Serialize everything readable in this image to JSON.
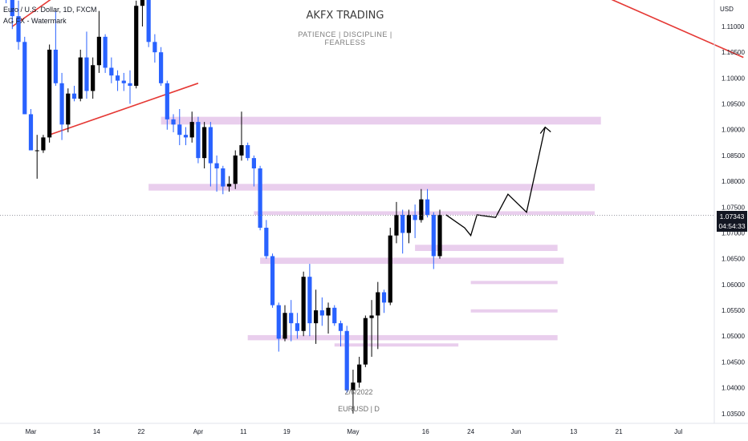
{
  "header": {
    "symbol_line": "Euro / U.S. Dollar, 1D, FXCM",
    "indicator_line": "AG FX - Watermark"
  },
  "watermark": {
    "title": "AKFX TRADING",
    "subtitle": "PATIENCE  |  DISCIPLINE  |  FEARLESS",
    "date": "2/6/2022",
    "instrument": "EURUSD | D"
  },
  "price_axis": {
    "currency": "USD",
    "ticks": [
      "1.11000",
      "1.10500",
      "1.10000",
      "1.09500",
      "1.09000",
      "1.08500",
      "1.08000",
      "1.07500",
      "1.07000",
      "1.06500",
      "1.06000",
      "1.05500",
      "1.05000",
      "1.04500",
      "1.04000",
      "1.03500"
    ],
    "current_price": "1.07343",
    "countdown": "04:54:33"
  },
  "time_axis": {
    "ticks": [
      "Mar",
      "14",
      "22",
      "Apr",
      "11",
      "19",
      "May",
      "16",
      "24",
      "Jun",
      "13",
      "21",
      "Jul"
    ]
  },
  "colors": {
    "bull": "#000000",
    "bear": "#2962ff",
    "zone": "#e1bee7",
    "trendline": "#e53935"
  },
  "chart_data": {
    "type": "candlestick",
    "title": "",
    "ylim": [
      1.0345,
      1.1155
    ],
    "candles": [
      {
        "o": 1.1205,
        "h": 1.123,
        "l": 1.1145,
        "c": 1.116
      },
      {
        "o": 1.116,
        "h": 1.119,
        "l": 1.1095,
        "c": 1.112
      },
      {
        "o": 1.112,
        "h": 1.115,
        "l": 1.1055,
        "c": 1.107
      },
      {
        "o": 1.107,
        "h": 1.108,
        "l": 1.093,
        "c": 1.093
      },
      {
        "o": 1.093,
        "h": 1.094,
        "l": 1.086,
        "c": 1.086
      },
      {
        "o": 1.086,
        "h": 1.089,
        "l": 1.0805,
        "c": 1.086
      },
      {
        "o": 1.086,
        "h": 1.089,
        "l": 1.0855,
        "c": 1.0885
      },
      {
        "o": 1.0885,
        "h": 1.1065,
        "l": 1.0875,
        "c": 1.1055
      },
      {
        "o": 1.1055,
        "h": 1.113,
        "l": 1.0985,
        "c": 1.099
      },
      {
        "o": 1.099,
        "h": 1.101,
        "l": 1.088,
        "c": 1.091
      },
      {
        "o": 1.091,
        "h": 1.098,
        "l": 1.0895,
        "c": 1.097
      },
      {
        "o": 1.097,
        "h": 1.0985,
        "l": 1.0955,
        "c": 1.096
      },
      {
        "o": 1.096,
        "h": 1.1055,
        "l": 1.0955,
        "c": 1.104
      },
      {
        "o": 1.104,
        "h": 1.109,
        "l": 1.096,
        "c": 1.0975
      },
      {
        "o": 1.0975,
        "h": 1.104,
        "l": 1.096,
        "c": 1.1025
      },
      {
        "o": 1.1025,
        "h": 1.113,
        "l": 1.101,
        "c": 1.108
      },
      {
        "o": 1.108,
        "h": 1.1085,
        "l": 1.101,
        "c": 1.102
      },
      {
        "o": 1.102,
        "h": 1.104,
        "l": 1.099,
        "c": 1.1005
      },
      {
        "o": 1.1005,
        "h": 1.1015,
        "l": 1.0975,
        "c": 1.0995
      },
      {
        "o": 1.0995,
        "h": 1.101,
        "l": 1.0975,
        "c": 1.099
      },
      {
        "o": 1.099,
        "h": 1.1015,
        "l": 1.095,
        "c": 1.0985
      },
      {
        "o": 1.0985,
        "h": 1.115,
        "l": 1.098,
        "c": 1.114
      },
      {
        "o": 1.114,
        "h": 1.1185,
        "l": 1.11,
        "c": 1.1165
      },
      {
        "o": 1.1165,
        "h": 1.1185,
        "l": 1.106,
        "c": 1.107
      },
      {
        "o": 1.107,
        "h": 1.1085,
        "l": 1.103,
        "c": 1.105
      },
      {
        "o": 1.105,
        "h": 1.106,
        "l": 1.0985,
        "c": 1.099
      },
      {
        "o": 1.099,
        "h": 1.0995,
        "l": 1.09,
        "c": 1.092
      },
      {
        "o": 1.092,
        "h": 1.093,
        "l": 1.0895,
        "c": 1.091
      },
      {
        "o": 1.091,
        "h": 1.094,
        "l": 1.087,
        "c": 1.089
      },
      {
        "o": 1.089,
        "h": 1.0905,
        "l": 1.087,
        "c": 1.0885
      },
      {
        "o": 1.0885,
        "h": 1.0935,
        "l": 1.0875,
        "c": 1.0915
      },
      {
        "o": 1.0915,
        "h": 1.0925,
        "l": 1.0835,
        "c": 1.0845
      },
      {
        "o": 1.0845,
        "h": 1.0915,
        "l": 1.0825,
        "c": 1.0905
      },
      {
        "o": 1.0905,
        "h": 1.0915,
        "l": 1.079,
        "c": 1.0835
      },
      {
        "o": 1.0835,
        "h": 1.085,
        "l": 1.078,
        "c": 1.0825
      },
      {
        "o": 1.0825,
        "h": 1.083,
        "l": 1.0775,
        "c": 1.079
      },
      {
        "o": 1.079,
        "h": 1.081,
        "l": 1.078,
        "c": 1.0795
      },
      {
        "o": 1.0795,
        "h": 1.086,
        "l": 1.0785,
        "c": 1.085
      },
      {
        "o": 1.085,
        "h": 1.0935,
        "l": 1.084,
        "c": 1.087
      },
      {
        "o": 1.087,
        "h": 1.0875,
        "l": 1.084,
        "c": 1.0845
      },
      {
        "o": 1.0845,
        "h": 1.085,
        "l": 1.079,
        "c": 1.0825
      },
      {
        "o": 1.0825,
        "h": 1.083,
        "l": 1.0705,
        "c": 1.071
      },
      {
        "o": 1.071,
        "h": 1.0725,
        "l": 1.065,
        "c": 1.0655
      },
      {
        "o": 1.0655,
        "h": 1.066,
        "l": 1.0555,
        "c": 1.056
      },
      {
        "o": 1.056,
        "h": 1.0565,
        "l": 1.047,
        "c": 1.0495
      },
      {
        "o": 1.0495,
        "h": 1.056,
        "l": 1.049,
        "c": 1.0545
      },
      {
        "o": 1.0545,
        "h": 1.057,
        "l": 1.049,
        "c": 1.0525
      },
      {
        "o": 1.0525,
        "h": 1.0545,
        "l": 1.0495,
        "c": 1.051
      },
      {
        "o": 1.051,
        "h": 1.0625,
        "l": 1.05,
        "c": 1.0615
      },
      {
        "o": 1.0615,
        "h": 1.064,
        "l": 1.05,
        "c": 1.0525
      },
      {
        "o": 1.0525,
        "h": 1.059,
        "l": 1.0485,
        "c": 1.055
      },
      {
        "o": 1.055,
        "h": 1.0575,
        "l": 1.052,
        "c": 1.054
      },
      {
        "o": 1.054,
        "h": 1.0565,
        "l": 1.0505,
        "c": 1.0555
      },
      {
        "o": 1.0555,
        "h": 1.056,
        "l": 1.052,
        "c": 1.0525
      },
      {
        "o": 1.0525,
        "h": 1.053,
        "l": 1.048,
        "c": 1.051
      },
      {
        "o": 1.051,
        "h": 1.052,
        "l": 1.039,
        "c": 1.0395
      },
      {
        "o": 1.0395,
        "h": 1.0435,
        "l": 1.035,
        "c": 1.041
      },
      {
        "o": 1.041,
        "h": 1.046,
        "l": 1.04,
        "c": 1.0445
      },
      {
        "o": 1.0445,
        "h": 1.054,
        "l": 1.044,
        "c": 1.0535
      },
      {
        "o": 1.0535,
        "h": 1.057,
        "l": 1.046,
        "c": 1.054
      },
      {
        "o": 1.054,
        "h": 1.0605,
        "l": 1.0475,
        "c": 1.0585
      },
      {
        "o": 1.0585,
        "h": 1.059,
        "l": 1.0545,
        "c": 1.0565
      },
      {
        "o": 1.0565,
        "h": 1.071,
        "l": 1.056,
        "c": 1.0695
      },
      {
        "o": 1.0695,
        "h": 1.076,
        "l": 1.068,
        "c": 1.0735
      },
      {
        "o": 1.0735,
        "h": 1.0745,
        "l": 1.066,
        "c": 1.07
      },
      {
        "o": 1.07,
        "h": 1.0745,
        "l": 1.068,
        "c": 1.0735
      },
      {
        "o": 1.0735,
        "h": 1.0755,
        "l": 1.069,
        "c": 1.0725
      },
      {
        "o": 1.0725,
        "h": 1.0785,
        "l": 1.072,
        "c": 1.0765
      },
      {
        "o": 1.0765,
        "h": 1.0785,
        "l": 1.073,
        "c": 1.0735
      },
      {
        "o": 1.0735,
        "h": 1.074,
        "l": 1.063,
        "c": 1.0655
      },
      {
        "o": 1.0655,
        "h": 1.0745,
        "l": 1.065,
        "c": 1.0735
      }
    ],
    "zones": [
      {
        "from_bar": 25,
        "to_bar": 96,
        "low": 1.091,
        "high": 1.0925
      },
      {
        "from_bar": 23,
        "to_bar": 95,
        "low": 1.0782,
        "high": 1.0795
      },
      {
        "from_bar": 40,
        "to_bar": 95,
        "low": 1.0735,
        "high": 1.0742
      },
      {
        "from_bar": 66,
        "to_bar": 89,
        "low": 1.0665,
        "high": 1.0677
      },
      {
        "from_bar": 41,
        "to_bar": 90,
        "low": 1.064,
        "high": 1.0652
      },
      {
        "from_bar": 75,
        "to_bar": 89,
        "low": 1.0602,
        "high": 1.0607
      },
      {
        "from_bar": 75,
        "to_bar": 89,
        "low": 1.0547,
        "high": 1.0552
      },
      {
        "from_bar": 39,
        "to_bar": 89,
        "low": 1.0492,
        "high": 1.0502
      },
      {
        "from_bar": 53,
        "to_bar": 73,
        "low": 1.0482,
        "high": 1.0486
      }
    ],
    "trendlines": [
      {
        "from": [
          1,
          1.11
        ],
        "to": [
          17,
          1.1235
        ]
      },
      {
        "from": [
          7,
          1.089
        ],
        "to": [
          31,
          1.099
        ]
      },
      {
        "from": [
          83,
          1.123
        ],
        "to": [
          119,
          1.104
        ]
      }
    ],
    "projection": [
      [
        71,
        1.0735
      ],
      [
        74,
        1.071
      ],
      [
        75,
        1.0695
      ],
      [
        76,
        1.0735
      ],
      [
        79,
        1.073
      ],
      [
        81,
        1.0775
      ],
      [
        84,
        1.074
      ],
      [
        87,
        1.0905
      ]
    ]
  }
}
